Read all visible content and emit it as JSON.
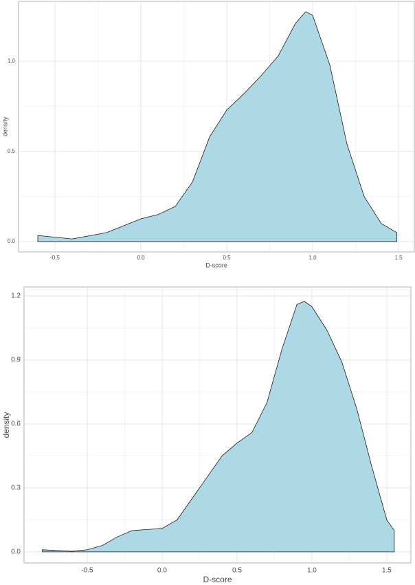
{
  "chart_data": [
    {
      "type": "area",
      "xlabel": "D-score",
      "ylabel": "density",
      "color": "#add8e6",
      "grid": true,
      "x": [
        -0.6,
        -0.4,
        -0.2,
        0.0,
        0.1,
        0.2,
        0.3,
        0.4,
        0.5,
        0.6,
        0.7,
        0.8,
        0.9,
        0.96,
        1.0,
        1.1,
        1.2,
        1.3,
        1.4,
        1.49
      ],
      "values": [
        0.034,
        0.015,
        0.05,
        0.126,
        0.15,
        0.195,
        0.33,
        0.58,
        0.73,
        0.82,
        0.92,
        1.03,
        1.21,
        1.275,
        1.255,
        0.98,
        0.54,
        0.25,
        0.1,
        0.05
      ],
      "xlim": [
        -0.712,
        1.592
      ],
      "ylim": [
        -0.057,
        1.332
      ],
      "xticks": [
        -0.5,
        {
          "value": 0,
          "label": "0.0"
        },
        0.5,
        {
          "value": 1,
          "label": "1.0"
        },
        1.5
      ],
      "yticks": [
        {
          "value": 0,
          "label": "0.0"
        },
        0.5,
        {
          "value": 1,
          "label": "1.0"
        }
      ]
    },
    {
      "type": "area",
      "xlabel": "D-score",
      "ylabel": "density",
      "color": "#add8e6",
      "grid": true,
      "x": [
        -0.8,
        -0.6,
        -0.5,
        -0.4,
        -0.3,
        -0.2,
        -0.1,
        0.0,
        0.1,
        0.2,
        0.3,
        0.4,
        0.5,
        0.6,
        0.7,
        0.8,
        0.9,
        0.95,
        1.0,
        1.1,
        1.2,
        1.3,
        1.4,
        1.5,
        1.55
      ],
      "values": [
        0.01,
        0.003,
        0.01,
        0.03,
        0.07,
        0.1,
        0.105,
        0.11,
        0.15,
        0.25,
        0.35,
        0.45,
        0.51,
        0.56,
        0.7,
        0.95,
        1.16,
        1.175,
        1.15,
        1.04,
        0.89,
        0.67,
        0.4,
        0.15,
        0.1
      ],
      "xlim": [
        -0.922,
        1.661
      ],
      "ylim": [
        -0.052,
        1.242
      ],
      "xticks": [
        -0.5,
        {
          "value": 0,
          "label": "0.0"
        },
        0.5,
        {
          "value": 1,
          "label": "1.0"
        },
        1.5
      ],
      "yticks": [
        {
          "value": 0,
          "label": "0.0"
        },
        0.3,
        0.6,
        0.9,
        1.2
      ]
    }
  ]
}
